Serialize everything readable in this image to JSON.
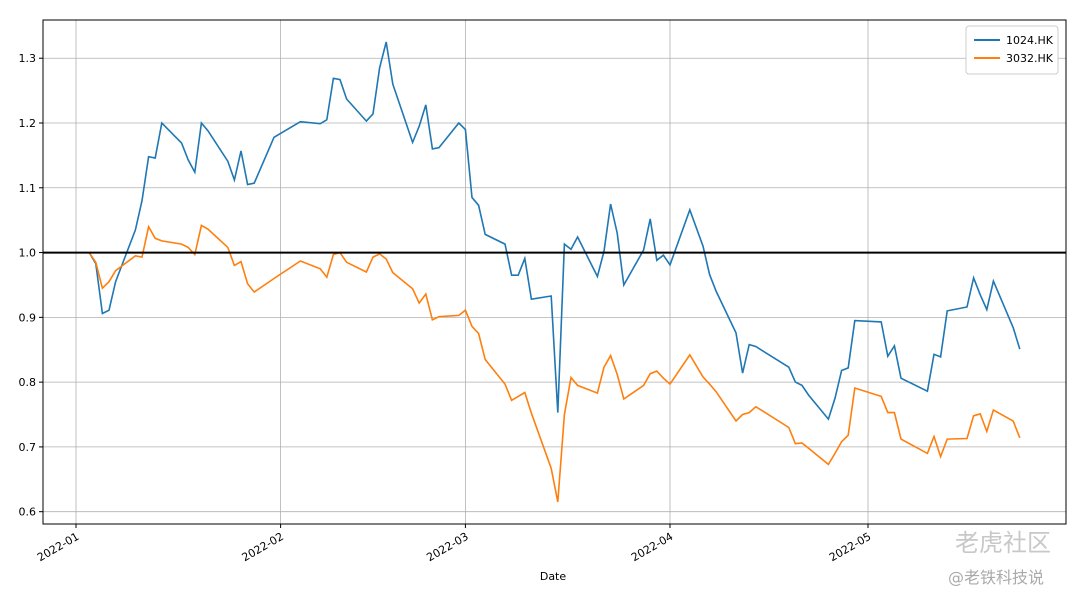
{
  "chart_data": {
    "type": "line",
    "xlabel": "Date",
    "x": [
      "2022-01-03",
      "2022-01-04",
      "2022-01-05",
      "2022-01-06",
      "2022-01-07",
      "2022-01-10",
      "2022-01-11",
      "2022-01-12",
      "2022-01-13",
      "2022-01-14",
      "2022-01-17",
      "2022-01-18",
      "2022-01-19",
      "2022-01-20",
      "2022-01-21",
      "2022-01-24",
      "2022-01-25",
      "2022-01-26",
      "2022-01-27",
      "2022-01-28",
      "2022-01-31",
      "2022-02-04",
      "2022-02-07",
      "2022-02-08",
      "2022-02-09",
      "2022-02-10",
      "2022-02-11",
      "2022-02-14",
      "2022-02-15",
      "2022-02-16",
      "2022-02-17",
      "2022-02-18",
      "2022-02-21",
      "2022-02-22",
      "2022-02-23",
      "2022-02-24",
      "2022-02-25",
      "2022-02-28",
      "2022-03-01",
      "2022-03-02",
      "2022-03-03",
      "2022-03-04",
      "2022-03-07",
      "2022-03-08",
      "2022-03-09",
      "2022-03-10",
      "2022-03-11",
      "2022-03-14",
      "2022-03-15",
      "2022-03-16",
      "2022-03-17",
      "2022-03-18",
      "2022-03-21",
      "2022-03-22",
      "2022-03-23",
      "2022-03-24",
      "2022-03-25",
      "2022-03-28",
      "2022-03-29",
      "2022-03-30",
      "2022-03-31",
      "2022-04-01",
      "2022-04-04",
      "2022-04-06",
      "2022-04-07",
      "2022-04-08",
      "2022-04-11",
      "2022-04-12",
      "2022-04-13",
      "2022-04-14",
      "2022-04-19",
      "2022-04-20",
      "2022-04-21",
      "2022-04-22",
      "2022-04-25",
      "2022-04-26",
      "2022-04-27",
      "2022-04-28",
      "2022-04-29",
      "2022-05-03",
      "2022-05-04",
      "2022-05-05",
      "2022-05-06",
      "2022-05-10",
      "2022-05-11",
      "2022-05-12",
      "2022-05-13",
      "2022-05-16",
      "2022-05-17",
      "2022-05-18",
      "2022-05-19",
      "2022-05-20",
      "2022-05-23",
      "2022-05-24"
    ],
    "series": [
      {
        "name": "1024.HK",
        "color": "#1f77b4",
        "values": [
          1.0,
          0.983,
          0.906,
          0.911,
          0.955,
          1.035,
          1.08,
          1.148,
          1.146,
          1.2,
          1.169,
          1.143,
          1.124,
          1.2,
          1.188,
          1.141,
          1.112,
          1.157,
          1.105,
          1.107,
          1.178,
          1.202,
          1.199,
          1.205,
          1.269,
          1.267,
          1.237,
          1.203,
          1.214,
          1.285,
          1.325,
          1.26,
          1.17,
          1.195,
          1.228,
          1.16,
          1.162,
          1.2,
          1.19,
          1.085,
          1.073,
          1.028,
          1.013,
          0.965,
          0.965,
          0.991,
          0.928,
          0.933,
          0.753,
          1.013,
          1.005,
          1.024,
          0.963,
          1.002,
          1.075,
          1.03,
          0.95,
          1.004,
          1.052,
          0.988,
          0.996,
          0.981,
          1.066,
          1.01,
          0.966,
          0.94,
          0.876,
          0.814,
          0.858,
          0.855,
          0.823,
          0.8,
          0.795,
          0.78,
          0.743,
          0.775,
          0.818,
          0.822,
          0.895,
          0.893,
          0.84,
          0.856,
          0.806,
          0.786,
          0.843,
          0.839,
          0.91,
          0.916,
          0.961,
          0.935,
          0.912,
          0.956,
          0.884,
          0.851
        ]
      },
      {
        "name": "3032.HK",
        "color": "#ff7f0e",
        "values": [
          1.0,
          0.985,
          0.945,
          0.955,
          0.972,
          0.995,
          0.993,
          1.04,
          1.022,
          1.018,
          1.013,
          1.008,
          0.997,
          1.042,
          1.036,
          1.008,
          0.98,
          0.986,
          0.952,
          0.939,
          0.96,
          0.987,
          0.975,
          0.962,
          0.997,
          1.0,
          0.985,
          0.97,
          0.993,
          0.998,
          0.99,
          0.969,
          0.944,
          0.922,
          0.936,
          0.896,
          0.901,
          0.903,
          0.911,
          0.886,
          0.875,
          0.835,
          0.797,
          0.772,
          0.778,
          0.784,
          0.752,
          0.667,
          0.615,
          0.75,
          0.807,
          0.795,
          0.783,
          0.823,
          0.841,
          0.812,
          0.774,
          0.795,
          0.813,
          0.817,
          0.806,
          0.797,
          0.842,
          0.808,
          0.797,
          0.785,
          0.74,
          0.75,
          0.753,
          0.762,
          0.73,
          0.705,
          0.706,
          0.698,
          0.673,
          0.69,
          0.708,
          0.718,
          0.791,
          0.778,
          0.753,
          0.753,
          0.712,
          0.69,
          0.716,
          0.685,
          0.712,
          0.713,
          0.748,
          0.751,
          0.724,
          0.757,
          0.74,
          0.714
        ]
      }
    ],
    "hline": {
      "value": 1.0,
      "color": "#000000"
    },
    "xlim": [
      "2021-12-27",
      "2022-05-31"
    ],
    "xticks": [
      {
        "value": "2022-01-01",
        "label": "2022-01"
      },
      {
        "value": "2022-02-01",
        "label": "2022-02"
      },
      {
        "value": "2022-03-01",
        "label": "2022-03"
      },
      {
        "value": "2022-04-01",
        "label": "2022-04"
      },
      {
        "value": "2022-05-01",
        "label": "2022-05"
      }
    ],
    "ylim": [
      0.581,
      1.359
    ],
    "yticks": [
      0.6,
      0.7,
      0.8,
      0.9,
      1.0,
      1.1,
      1.2,
      1.3
    ],
    "ytick_labels": [
      "0.6",
      "0.7",
      "0.8",
      "0.9",
      "1.0",
      "1.1",
      "1.2",
      "1.3"
    ],
    "grid": true,
    "legend": "upper right",
    "annotations": [
      "老虎社区",
      "@老铁科技说"
    ]
  }
}
